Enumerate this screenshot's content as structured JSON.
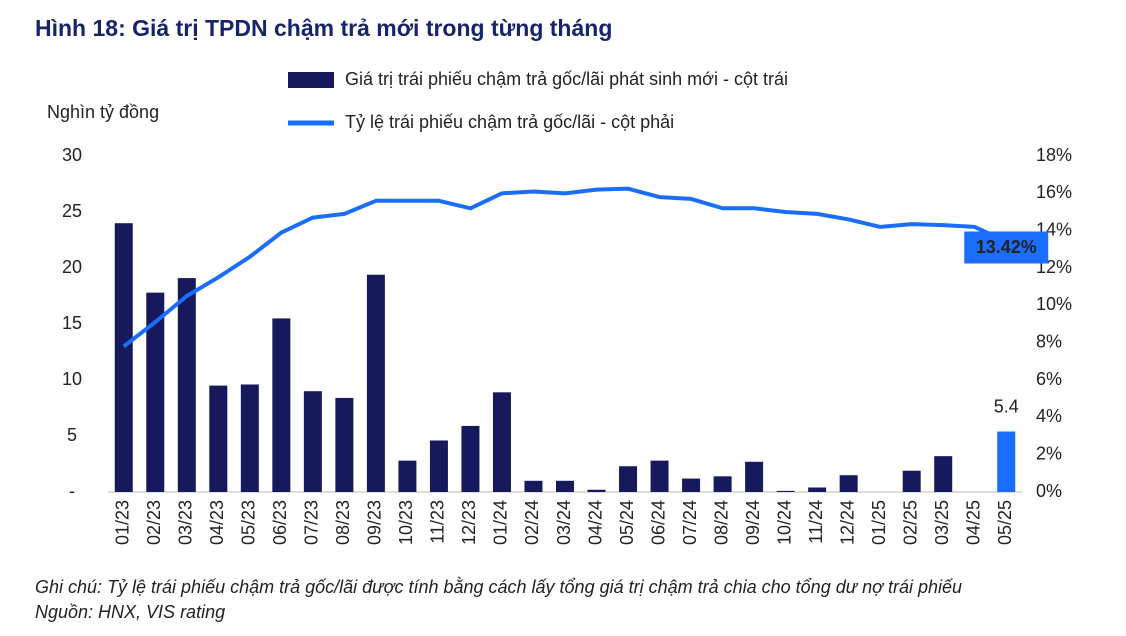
{
  "chart_data": {
    "type": "bar_line",
    "title": "Hình 18: Giá trị TPDN chậm trả mới trong từng tháng",
    "y_label": "Nghìn tỷ đồng",
    "note": "Ghi chú: Tỷ lệ trái phiếu chậm trả gốc/lãi được tính bằng cách lấy tổng giá trị chậm trả chia cho tổng dư nợ trái phiếu",
    "source": "Nguồn: HNX, VIS rating",
    "categories": [
      "01/23",
      "02/23",
      "03/23",
      "04/23",
      "05/23",
      "06/23",
      "07/23",
      "08/23",
      "09/23",
      "10/23",
      "11/23",
      "12/23",
      "01/24",
      "02/24",
      "03/24",
      "04/24",
      "05/24",
      "06/24",
      "07/24",
      "08/24",
      "09/24",
      "10/24",
      "11/24",
      "12/24",
      "01/25",
      "02/25",
      "03/25",
      "04/25",
      "05/25"
    ],
    "series": [
      {
        "name": "Giá trị trái phiếu chậm trả gốc/lãi phát sinh mới - cột trái",
        "color": "#161a5c",
        "kind": "bar",
        "values": [
          24.0,
          17.8,
          19.1,
          9.5,
          9.6,
          15.5,
          9.0,
          8.4,
          19.4,
          2.8,
          4.6,
          5.9,
          8.9,
          1.0,
          1.0,
          0.2,
          2.3,
          2.8,
          1.2,
          1.4,
          2.7,
          0.1,
          0.4,
          1.5,
          0,
          1.9,
          3.2,
          0,
          5.4
        ],
        "highlight_color": "#1a6dff",
        "value_labels": [
          null,
          null,
          null,
          null,
          null,
          null,
          null,
          null,
          null,
          null,
          null,
          null,
          null,
          null,
          null,
          null,
          null,
          null,
          null,
          null,
          null,
          null,
          null,
          null,
          null,
          null,
          null,
          null,
          "5.4"
        ]
      },
      {
        "name": "Tỷ lệ trái phiếu chậm trả gốc/lãi - cột phải",
        "color": "#1a6dff",
        "kind": "line",
        "axis": "y2",
        "values": [
          7.8,
          9.1,
          10.5,
          11.5,
          12.6,
          13.9,
          14.7,
          14.9,
          15.6,
          15.6,
          15.6,
          15.2,
          16.0,
          16.1,
          16.0,
          16.2,
          16.25,
          15.8,
          15.7,
          15.2,
          15.2,
          15.0,
          14.9,
          14.6,
          14.2,
          14.35,
          14.3,
          14.2,
          13.42
        ],
        "value_labels": [
          null,
          null,
          null,
          null,
          null,
          null,
          null,
          null,
          null,
          null,
          null,
          null,
          null,
          null,
          null,
          null,
          null,
          null,
          null,
          null,
          null,
          null,
          null,
          null,
          null,
          null,
          null,
          null,
          "13.42%"
        ]
      }
    ],
    "ylim": [
      0,
      30
    ],
    "yticks": [
      {
        "value": 0,
        "label": "-"
      },
      5,
      10,
      15,
      20,
      25,
      30
    ],
    "y2lim": [
      0,
      18
    ],
    "y2ticks": [
      {
        "value": 0,
        "label": "0%"
      },
      {
        "value": 2,
        "label": "2%"
      },
      {
        "value": 4,
        "label": "4%"
      },
      {
        "value": 6,
        "label": "6%"
      },
      {
        "value": 8,
        "label": "8%"
      },
      {
        "value": 10,
        "label": "10%"
      },
      {
        "value": 12,
        "label": "12%"
      },
      {
        "value": 14,
        "label": "14%"
      },
      {
        "value": 16,
        "label": "16%"
      },
      {
        "value": 18,
        "label": "18%"
      }
    ]
  }
}
